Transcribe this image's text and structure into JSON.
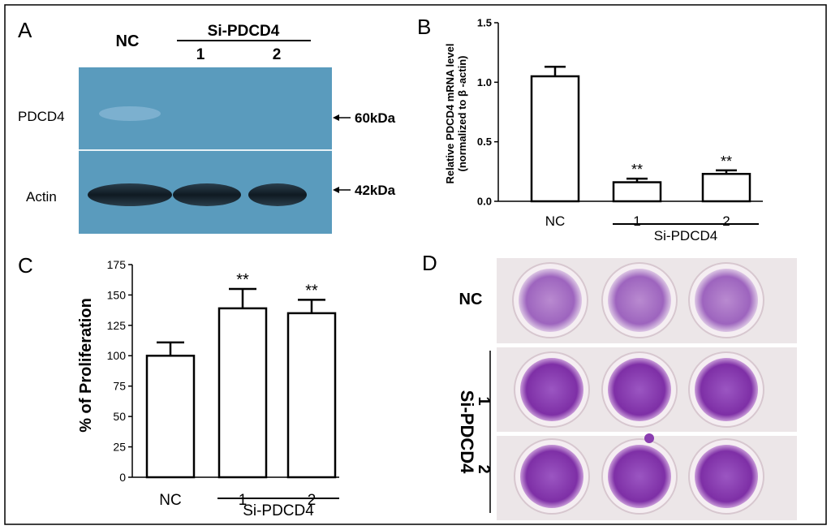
{
  "figure": {
    "panels": {
      "A": {
        "letter": "A",
        "lanes": {
          "nc": "NC",
          "group": "Si-PDCD4",
          "lane1": "1",
          "lane2": "2"
        },
        "rows": [
          {
            "label": "PDCD4",
            "marker": "60kDa"
          },
          {
            "label": "Actin",
            "marker": "42kDa"
          }
        ],
        "blot_color": "#5a9bbd"
      },
      "B": {
        "letter": "B"
      },
      "C": {
        "letter": "C"
      },
      "D": {
        "letter": "D",
        "row_labels": {
          "nc": "NC",
          "group": "Si-PDCD4",
          "lane1": "1",
          "lane2": "2"
        },
        "well_color": "#8a3db0"
      }
    }
  },
  "chart_data": [
    {
      "panel": "B",
      "type": "bar",
      "categories": [
        "NC",
        "1",
        "2"
      ],
      "group_label": "Si-PDCD4",
      "values": [
        1.05,
        0.16,
        0.23
      ],
      "errors": [
        0.08,
        0.03,
        0.03
      ],
      "significance": [
        "",
        "**",
        "**"
      ],
      "ylabel": [
        "Relative PDCD4 mRNA level",
        "(normalized to β -actin)"
      ],
      "ylim": [
        0,
        1.5
      ],
      "yticks": [
        "0.0",
        "0.5",
        "1.0",
        "1.5"
      ]
    },
    {
      "panel": "C",
      "type": "bar",
      "categories": [
        "NC",
        "1",
        "2"
      ],
      "group_label": "Si-PDCD4",
      "values": [
        100,
        139,
        135
      ],
      "errors": [
        11,
        16,
        11
      ],
      "significance": [
        "",
        "**",
        "**"
      ],
      "ylabel": "% of Proliferation",
      "ylim": [
        0,
        175
      ],
      "yticks": [
        "0",
        "25",
        "50",
        "75",
        "100",
        "125",
        "150",
        "175"
      ]
    }
  ]
}
